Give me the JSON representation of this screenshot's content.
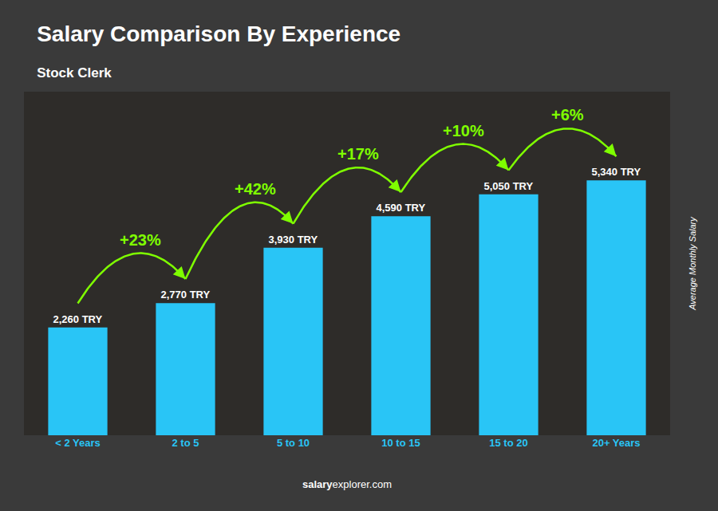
{
  "chart_data": {
    "type": "bar",
    "title": "Salary Comparison By Experience",
    "subtitle": "Stock Clerk",
    "categories": [
      "< 2 Years",
      "2 to 5",
      "5 to 10",
      "10 to 15",
      "15 to 20",
      "20+ Years"
    ],
    "values": [
      2260,
      2770,
      3930,
      4590,
      5050,
      5340
    ],
    "value_labels": [
      "2,260 TRY",
      "2,770 TRY",
      "3,930 TRY",
      "4,590 TRY",
      "5,050 TRY",
      "5,340 TRY"
    ],
    "data_labels": true,
    "color": "#29C5F6",
    "ylabel": "Average Monthly Salary",
    "ylim": [
      0,
      7200
    ],
    "yticks": [],
    "tick_labels": "x",
    "grid": false,
    "annotations": [
      {
        "text": "+23%",
        "color": "#7FFF00"
      },
      {
        "text": "+42%",
        "color": "#7FFF00"
      },
      {
        "text": "+17%",
        "color": "#7FFF00"
      },
      {
        "text": "+10%",
        "color": "#7FFF00"
      },
      {
        "text": "+6%",
        "color": "#7FFF00"
      }
    ],
    "watermark": {
      "bold": "salary",
      "regular": "explorer.com"
    }
  }
}
